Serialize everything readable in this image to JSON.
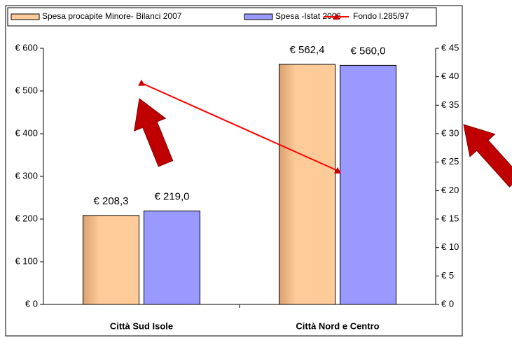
{
  "chart_data": {
    "type": "bar",
    "categories": [
      "Città Sud Isole",
      "Città Nord e Centro"
    ],
    "series": [
      {
        "name": "Spesa procapite Minore- Bilanci 2007",
        "color": "#FFCC99",
        "values": [
          208.3,
          562.4
        ],
        "value_labels": [
          "€ 208,3",
          "€ 562,4"
        ]
      },
      {
        "name": "Spesa -Istat 2006",
        "color": "#9999FF",
        "values": [
          219.0,
          560.0
        ],
        "value_labels": [
          "€ 219,0",
          "€ 560,0"
        ]
      },
      {
        "name": "Fondo l.285/97",
        "color": "#FF0000",
        "type": "line",
        "axis": "y2",
        "values": [
          38.9,
          23.5
        ]
      }
    ],
    "ylim": [
      0,
      600
    ],
    "yticks": [
      {
        "value": 0,
        "label": "€ 0"
      },
      {
        "value": 100,
        "label": "€ 100"
      },
      {
        "value": 200,
        "label": "€ 200"
      },
      {
        "value": 300,
        "label": "€ 300"
      },
      {
        "value": 400,
        "label": "€ 400"
      },
      {
        "value": 500,
        "label": "€ 500"
      },
      {
        "value": 600,
        "label": "€ 600"
      }
    ],
    "y2lim": [
      0,
      45
    ],
    "y2ticks": [
      {
        "value": 0,
        "label": "€ 0"
      },
      {
        "value": 5,
        "label": "€ 5"
      },
      {
        "value": 10,
        "label": "€ 10"
      },
      {
        "value": 15,
        "label": "€ 15"
      },
      {
        "value": 20,
        "label": "€ 20"
      },
      {
        "value": 25,
        "label": "€ 25"
      },
      {
        "value": 30,
        "label": "€ 30"
      },
      {
        "value": 35,
        "label": "€ 35"
      },
      {
        "value": 40,
        "label": "€ 40"
      },
      {
        "value": 45,
        "label": "€ 45"
      }
    ],
    "legend": "top",
    "grid": false
  }
}
